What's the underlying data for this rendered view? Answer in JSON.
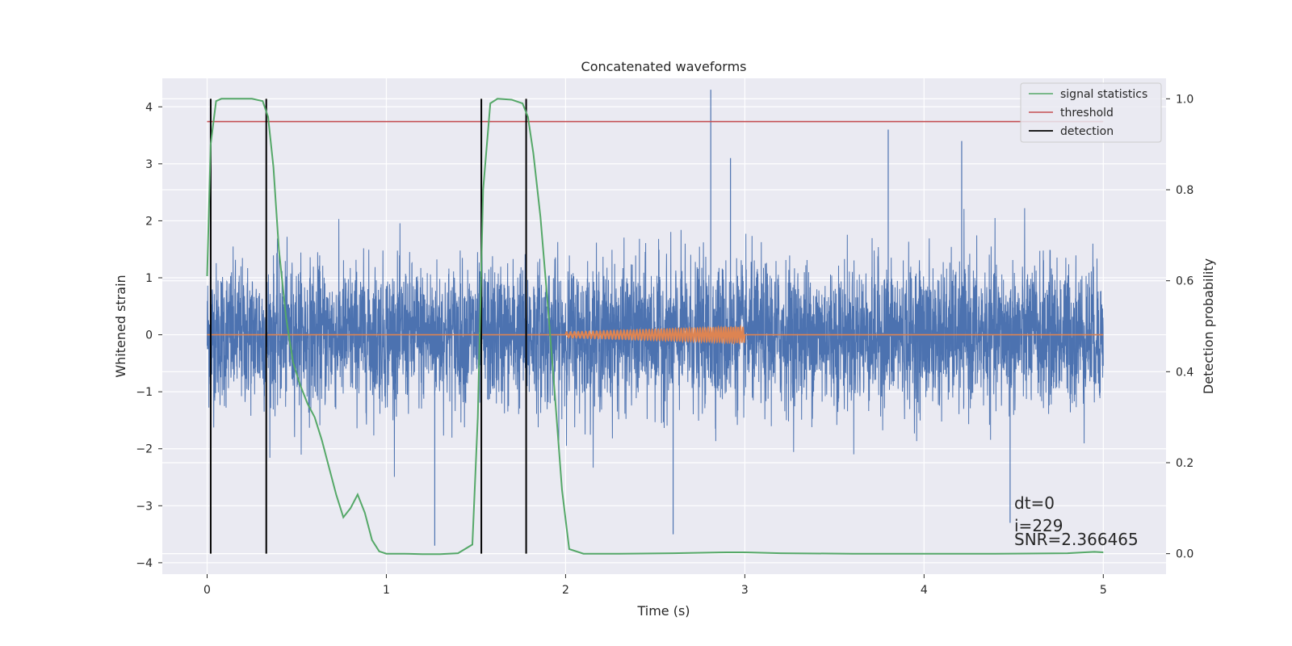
{
  "chart_data": {
    "type": "line",
    "title": "Concatenated waveforms",
    "xlabel": "Time (s)",
    "ylabel": "Whitened strain",
    "ylabel_right": "Detection probability",
    "xlim": [
      -0.25,
      5.35
    ],
    "ylim": [
      -4.2,
      4.5
    ],
    "ylim_right": [
      -0.045,
      1.045
    ],
    "xticks": [
      0,
      1,
      2,
      3,
      4,
      5
    ],
    "yticks": [
      -4,
      -3,
      -2,
      -1,
      0,
      1,
      2,
      3,
      4
    ],
    "yticks_right": [
      0.0,
      0.2,
      0.4,
      0.6,
      0.8,
      1.0
    ],
    "grid": true,
    "legend_position": "top-right",
    "legend": [
      "signal statistics",
      "threshold",
      "detection"
    ],
    "annotations": [
      "dt=0",
      "i=229",
      "SNR=2.366465"
    ],
    "colors": {
      "strain": "#4c72b0",
      "template": "#dd8452",
      "signal_statistics": "#55a868",
      "threshold": "#c44e52",
      "detection": "#000000",
      "background": "#eaeaf2",
      "grid": "#ffffff"
    },
    "series": [
      {
        "name": "strain",
        "axis": "left",
        "x_range": [
          0,
          5
        ],
        "envelope": {
          "typical_max": 2.2,
          "typical_min": -2.0,
          "peak_max": 4.3,
          "peak_min": -3.7
        }
      },
      {
        "name": "template",
        "axis": "left",
        "x": [
          0,
          2,
          2.5,
          3,
          5
        ],
        "amplitude": [
          0,
          0.05,
          0.1,
          0.14,
          0
        ]
      },
      {
        "name": "signal statistics",
        "axis": "right",
        "x": [
          0,
          0.02,
          0.05,
          0.08,
          0.15,
          0.25,
          0.31,
          0.34,
          0.37,
          0.4,
          0.44,
          0.48,
          0.52,
          0.56,
          0.6,
          0.64,
          0.68,
          0.72,
          0.76,
          0.8,
          0.84,
          0.88,
          0.92,
          0.96,
          1.0,
          1.1,
          1.2,
          1.3,
          1.4,
          1.48,
          1.51,
          1.54,
          1.58,
          1.62,
          1.7,
          1.76,
          1.79,
          1.82,
          1.86,
          1.9,
          1.94,
          1.98,
          2.02,
          2.1,
          2.3,
          2.6,
          2.9,
          3.0,
          3.2,
          3.6,
          4.0,
          4.4,
          4.8,
          4.95,
          5.0
        ],
        "y": [
          0.61,
          0.9,
          0.995,
          1.0,
          1.0,
          1.0,
          0.995,
          0.96,
          0.85,
          0.67,
          0.52,
          0.42,
          0.37,
          0.33,
          0.3,
          0.25,
          0.19,
          0.13,
          0.08,
          0.1,
          0.13,
          0.09,
          0.03,
          0.005,
          0.0,
          0.0,
          -0.001,
          -0.001,
          0.001,
          0.02,
          0.3,
          0.8,
          0.99,
          1.0,
          0.998,
          0.99,
          0.96,
          0.88,
          0.74,
          0.55,
          0.35,
          0.14,
          0.01,
          0.0,
          0.0,
          0.001,
          0.003,
          0.003,
          0.001,
          0.0,
          0.0,
          0.0,
          0.001,
          0.004,
          0.003
        ]
      },
      {
        "name": "threshold",
        "axis": "right",
        "x": [
          0,
          5
        ],
        "y": [
          0.95,
          0.95
        ]
      },
      {
        "name": "detection",
        "axis": "right",
        "x": [
          0.02,
          0.33,
          1.53,
          1.78
        ],
        "y_range": [
          0.0,
          1.0
        ]
      }
    ]
  }
}
